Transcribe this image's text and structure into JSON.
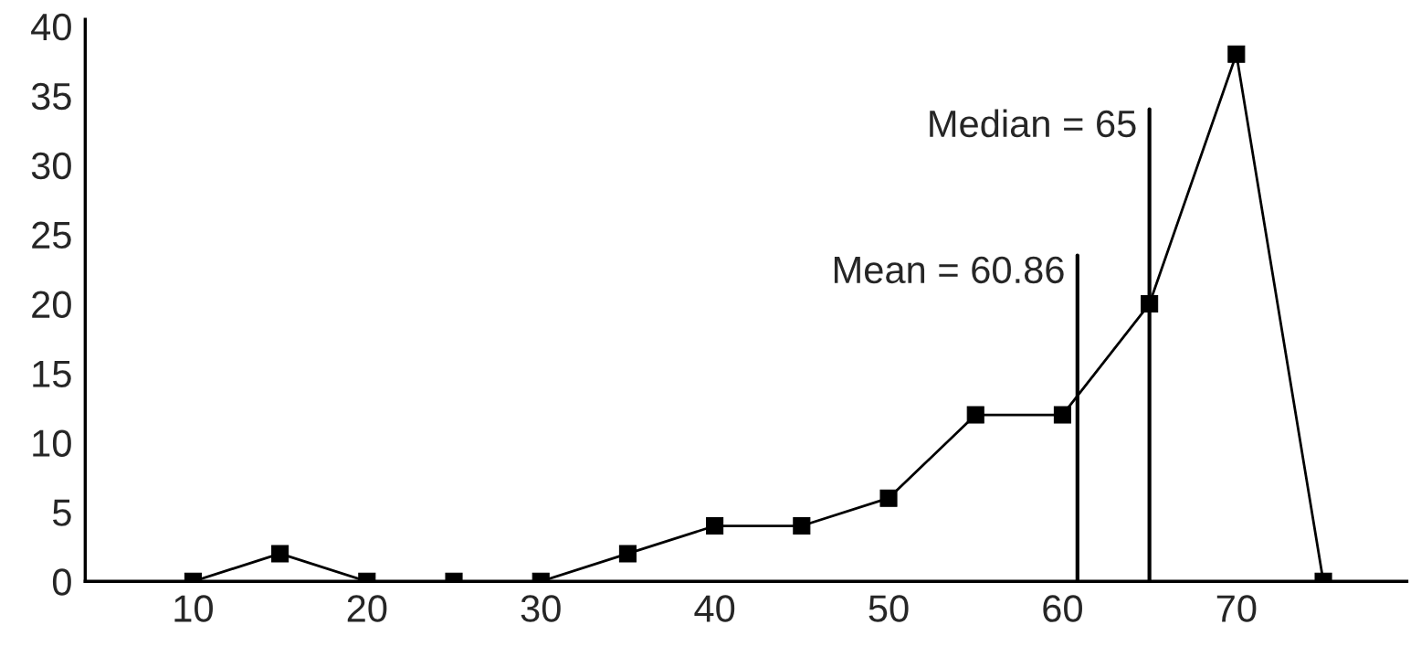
{
  "chart_data": {
    "type": "line",
    "x": [
      10,
      15,
      20,
      25,
      30,
      35,
      40,
      45,
      50,
      55,
      60,
      65,
      70,
      75
    ],
    "series": [
      {
        "color": "#000000",
        "values": [
          0,
          2,
          0,
          0,
          0,
          2,
          4,
          4,
          6,
          12,
          12,
          20,
          38,
          0
        ]
      }
    ],
    "ref_lines": [
      {
        "axis": "x",
        "value": 60.86,
        "label": "Mean = 60.86",
        "color": "#000000"
      },
      {
        "axis": "x",
        "value": 65,
        "label": "Median = 65",
        "color": "#000000"
      }
    ],
    "marker": "square",
    "line_style": "solid",
    "xlim": [
      3.8,
      79.8
    ],
    "xticks": [
      10,
      20,
      30,
      40,
      50,
      60,
      70
    ],
    "ylim": [
      0,
      40.5
    ],
    "yticks": [
      0,
      5,
      10,
      15,
      20,
      25,
      30,
      35,
      40
    ],
    "grid": false
  }
}
